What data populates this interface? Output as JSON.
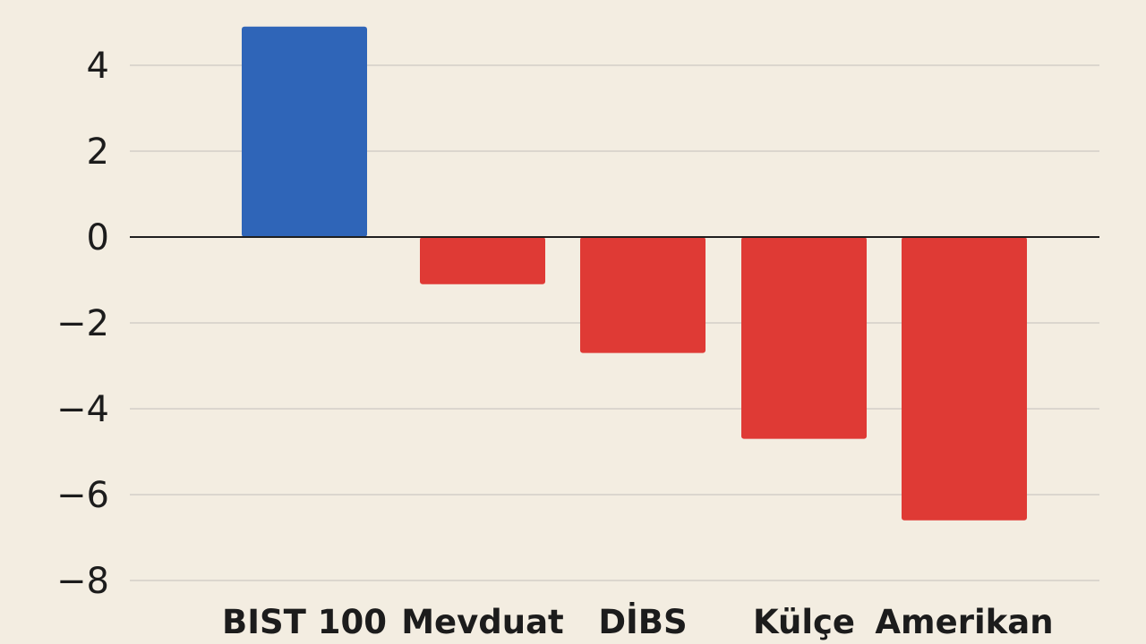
{
  "chart_data": {
    "type": "bar",
    "title": "",
    "xlabel": "",
    "ylabel": "",
    "categories": [
      "BIST 100",
      "Mevduat",
      "DİBS",
      "Külçe",
      "Amerikan"
    ],
    "values": [
      4.9,
      -1.1,
      -2.7,
      -4.7,
      -6.6
    ],
    "ylim": [
      -8,
      5.5
    ],
    "yticks": [
      4,
      2,
      0,
      -2,
      -4,
      -6,
      -8
    ],
    "ytick_labels": [
      "4",
      "2",
      "0",
      "−2",
      "−4",
      "−6",
      "−8"
    ],
    "grid": true,
    "legend": "none",
    "colors": {
      "positive": "#2f65b8",
      "negative": "#df3a35",
      "grid": "#d3cfc7",
      "zero_line": "#1f1f1f",
      "background": "#f3ede1",
      "text": "#1c1c1c"
    }
  }
}
